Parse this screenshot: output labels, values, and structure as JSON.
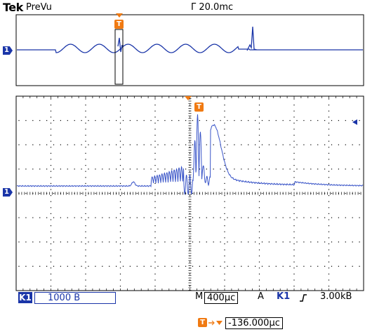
{
  "header": {
    "brand": "Tek",
    "mode": "PreVu",
    "record_rate": "Γ 20.0mc"
  },
  "channel_marker": "1",
  "trigger_marker": "T",
  "status_bar": {
    "channel_badge": "K1",
    "volts_per_div": "1000 B",
    "timebase_prefix": "M",
    "timebase": "400μc",
    "trigger_prefix": "A",
    "trigger_source": "K1",
    "trigger_slope_icon": "rising-edge-icon",
    "trigger_level": "3.00kB"
  },
  "trigger_position": {
    "value": "-136.000μc"
  },
  "colors": {
    "trace": "#1a35a8",
    "trigger": "#f07a12",
    "grid": "#000000"
  }
}
